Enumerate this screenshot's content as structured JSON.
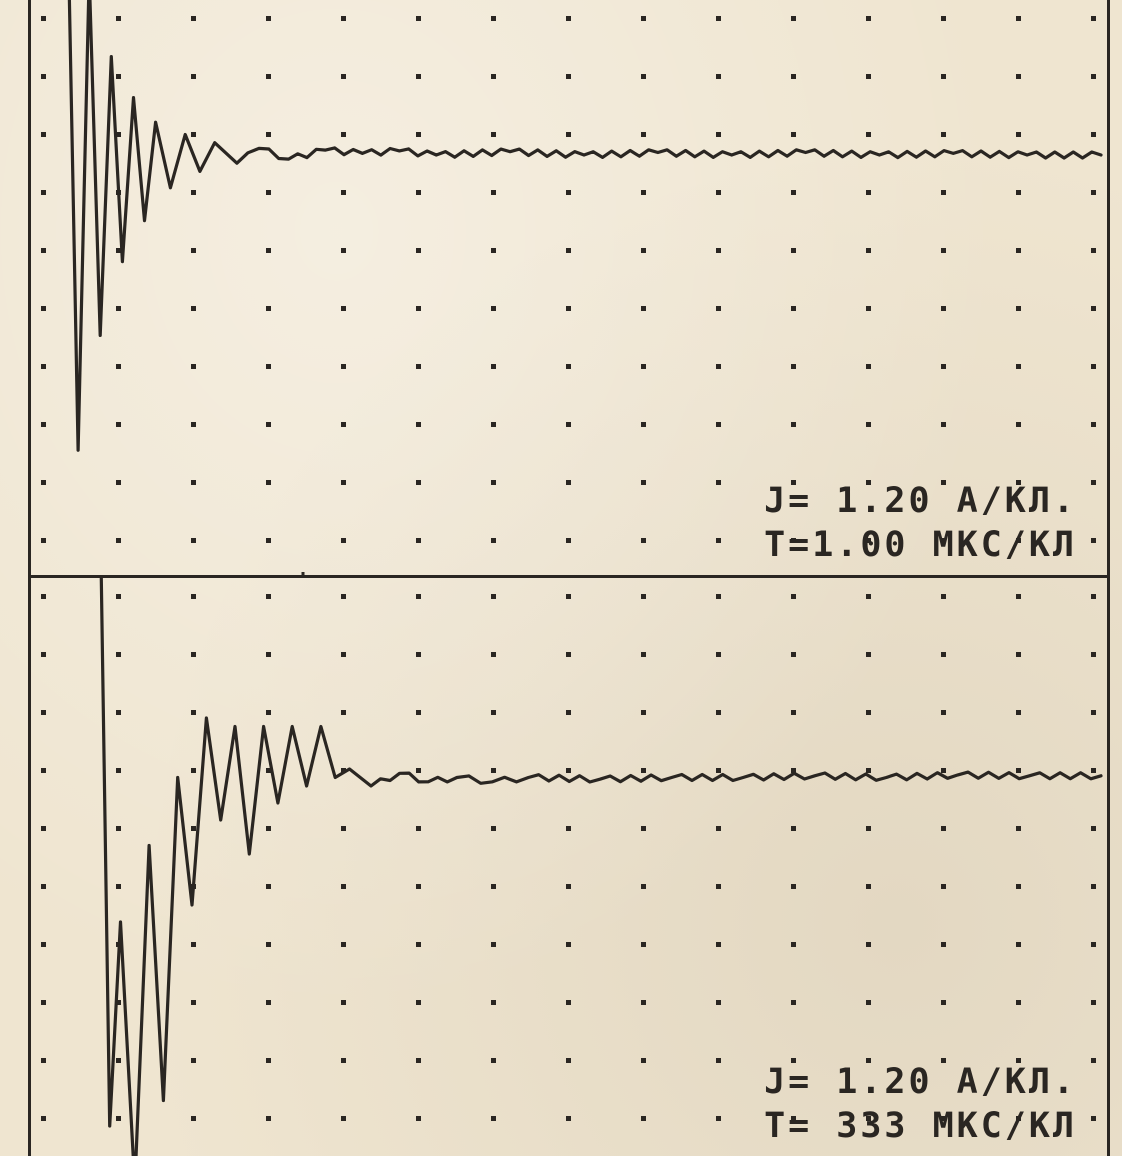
{
  "chart_data": [
    {
      "type": "line",
      "title": "",
      "xlabel": "",
      "ylabel": "",
      "grid": true,
      "readout": {
        "current": "J= 1.20 А/КЛ.",
        "time": "T=1.00 МКС/КЛ"
      },
      "series": [
        {
          "x": [
            0,
            0.15,
            0.3,
            0.45,
            0.6,
            0.75,
            0.9,
            1.05,
            1.2,
            1.4,
            1.6,
            1.8,
            2.0,
            2.3,
            2.6,
            3.0,
            3.5,
            4.0,
            4.5,
            5.0,
            6.0,
            7.0,
            8.0,
            9.0,
            10.0,
            11.0,
            12.0,
            13.0,
            14.0
          ],
          "y": [
            3.4,
            -3.6,
            2.2,
            -2.2,
            1.2,
            -1.3,
            0.7,
            -0.8,
            0.4,
            -0.4,
            0.25,
            -0.2,
            0.15,
            -0.1,
            0.08,
            -0.05,
            0.06,
            0.02,
            0.05,
            0.0,
            0.04,
            0.0,
            0.03,
            0.0,
            0.03,
            0.0,
            0.02,
            0.0,
            0.0
          ]
        }
      ]
    },
    {
      "type": "line",
      "title": "",
      "xlabel": "",
      "ylabel": "",
      "grid": true,
      "readout": {
        "current": "J= 1.20 А/КЛ.",
        "time": "T= 333 МКС/КЛ"
      },
      "series": [
        {
          "x": [
            0,
            0.15,
            0.3,
            0.5,
            0.7,
            0.9,
            1.1,
            1.3,
            1.5,
            1.7,
            1.9,
            2.1,
            2.3,
            2.5,
            2.7,
            2.9,
            3.1,
            3.3,
            3.5,
            3.8,
            4.2,
            4.6,
            5.0,
            5.5,
            6.0,
            7.0,
            8.0,
            9.0,
            10.0,
            11.0,
            12.0,
            13.0,
            14.0
          ],
          "y": [
            4.4,
            -3.8,
            -1.4,
            -4.5,
            -0.5,
            -3.5,
            0.3,
            -1.2,
            1.0,
            -0.2,
            0.9,
            -0.6,
            0.9,
            0.0,
            0.9,
            0.2,
            0.9,
            0.3,
            0.4,
            0.2,
            0.35,
            0.25,
            0.3,
            0.25,
            0.3,
            0.28,
            0.3,
            0.3,
            0.32,
            0.3,
            0.33,
            0.32,
            0.32
          ]
        }
      ]
    }
  ]
}
